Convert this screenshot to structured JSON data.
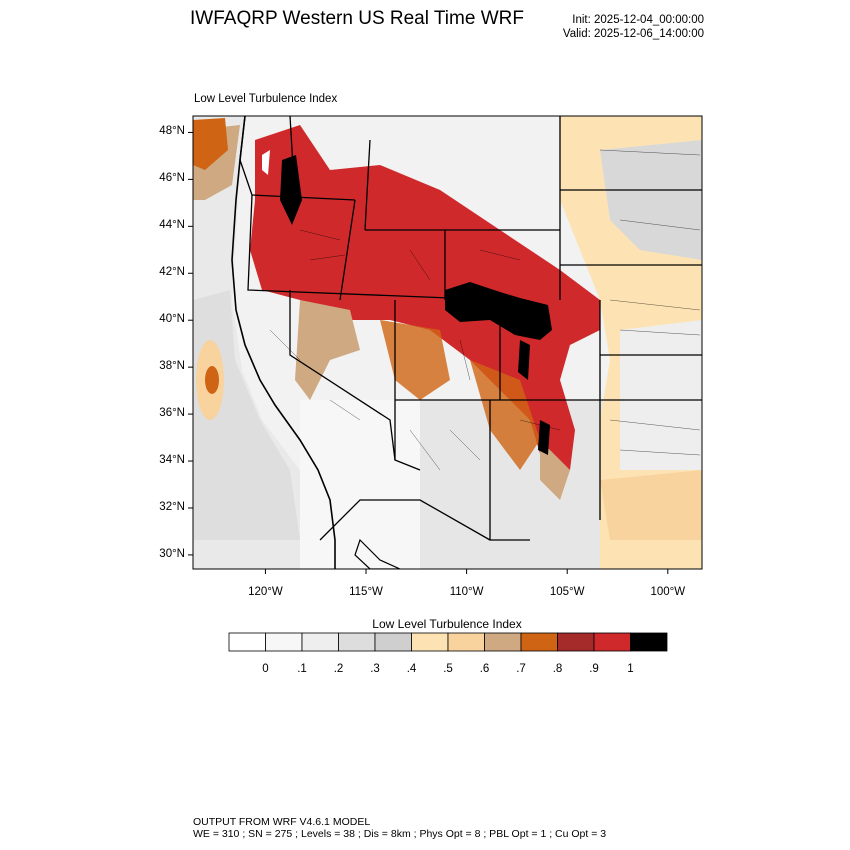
{
  "header": {
    "title": "IWFAQRP Western US Real Time WRF",
    "init": "Init: 2025-12-04_00:00:00",
    "valid": "Valid: 2025-12-06_14:00:00"
  },
  "map": {
    "field_label": "Low Level Turbulence Index",
    "lat_ticks": [
      "48°N",
      "46°N",
      "44°N",
      "42°N",
      "40°N",
      "38°N",
      "36°N",
      "34°N",
      "32°N",
      "30°N"
    ],
    "lon_ticks": [
      "120°W",
      "115°W",
      "110°W",
      "105°W",
      "100°W"
    ],
    "lat_values": [
      48,
      46,
      44,
      42,
      40,
      38,
      36,
      34,
      32,
      30
    ],
    "lon_values": [
      -120,
      -115,
      -110,
      -105,
      -100
    ],
    "extent": {
      "lon_min": -123.6,
      "lon_max": -98.3,
      "lat_min": 29.4,
      "lat_max": 48.7
    },
    "gridlines": false
  },
  "colorbar": {
    "title": "Low Level Turbulence Index",
    "labels": [
      "0",
      ".1",
      ".2",
      ".3",
      ".4",
      ".5",
      ".6",
      ".7",
      ".8",
      ".9",
      "1"
    ],
    "colors": [
      "#ffffff",
      "#f7f7f7",
      "#eeeeee",
      "#dddddd",
      "#cfcfcf",
      "#fde3b3",
      "#f8d39e",
      "#cfa981",
      "#cf6414",
      "#a52a2a",
      "#d0292b",
      "#000000"
    ]
  },
  "footer": {
    "line1": "OUTPUT FROM WRF V4.6.1 MODEL",
    "line2": "WE = 310 ; SN = 275 ; Levels = 38 ; Dis = 8km ; Phys Opt = 8 ; PBL Opt = 1 ; Cu Opt = 3"
  }
}
